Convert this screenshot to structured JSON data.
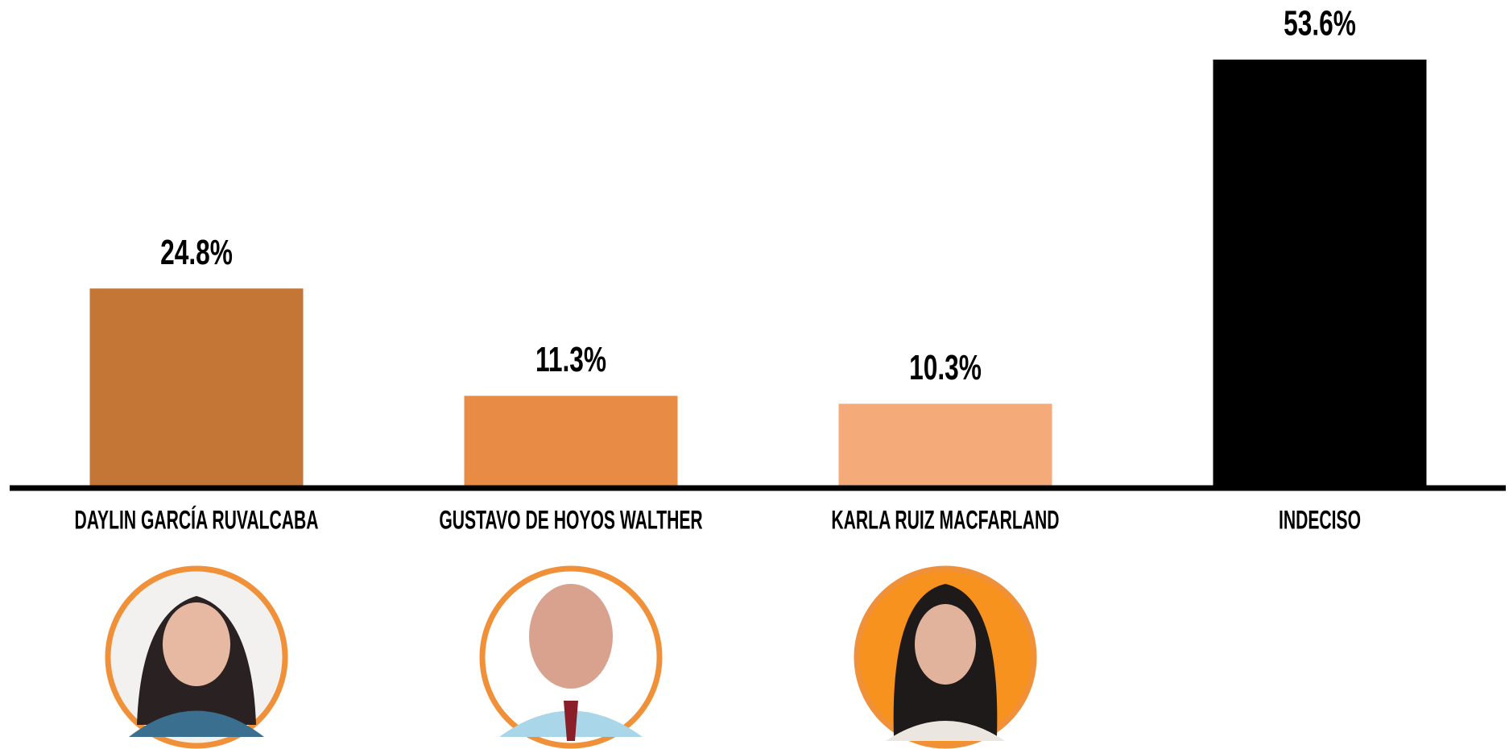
{
  "chart_data": {
    "type": "bar",
    "categories": [
      "DAYLIN GARCÍA RUVALCABA",
      "GUSTAVO DE HOYOS WALTHER",
      "KARLA RUIZ MACFARLAND",
      "INDECISO"
    ],
    "values": [
      24.8,
      11.3,
      10.3,
      53.6
    ],
    "value_labels": [
      "24.8%",
      "11.3%",
      "10.3%",
      "53.6%"
    ],
    "colors": [
      "#c47636",
      "#e88c45",
      "#f5aa7a",
      "#000000"
    ]
  }
}
